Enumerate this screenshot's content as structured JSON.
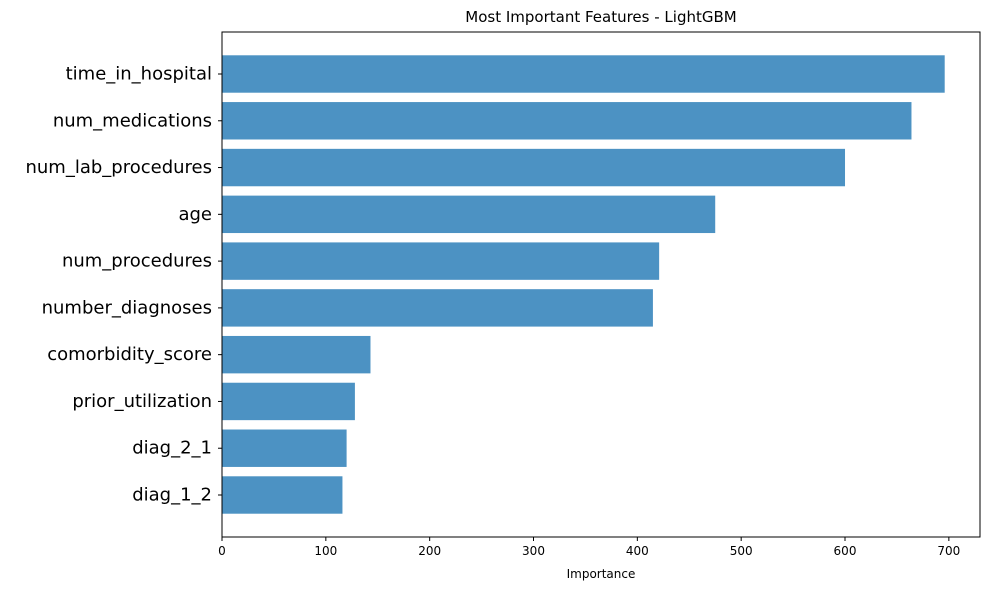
{
  "chart_data": {
    "type": "bar",
    "orientation": "horizontal",
    "title": "Most Important Features - LightGBM",
    "xlabel": "Importance",
    "ylabel": "",
    "categories": [
      "time_in_hospital",
      "num_medications",
      "num_lab_procedures",
      "age",
      "num_procedures",
      "number_diagnoses",
      "comorbidity_score",
      "prior_utilization",
      "diag_2_1",
      "diag_1_2"
    ],
    "values": [
      696,
      664,
      600,
      475,
      421,
      415,
      143,
      128,
      120,
      116
    ],
    "xlim": [
      0,
      730
    ],
    "xticks": [
      0,
      100,
      200,
      300,
      400,
      500,
      600,
      700
    ],
    "bar_color": "#4c92c3",
    "grid": false,
    "legend": "none"
  }
}
